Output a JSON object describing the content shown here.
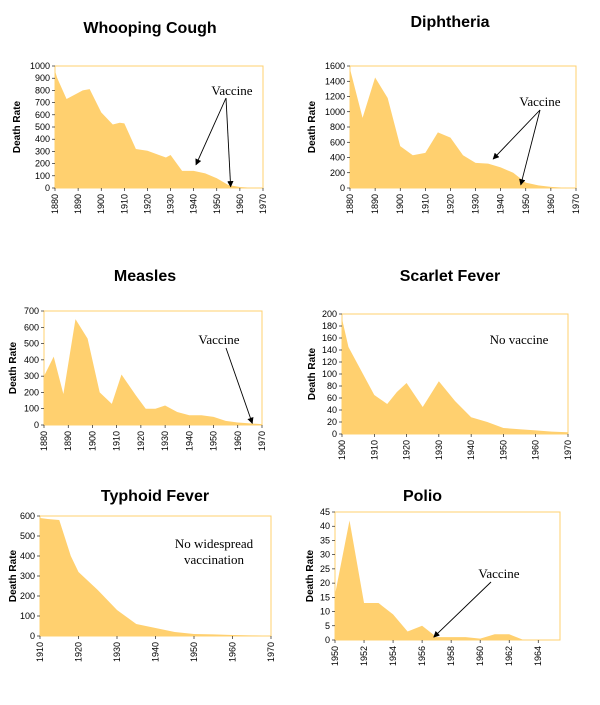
{
  "chart_data": [
    {
      "type": "area",
      "title": "Whooping Cough",
      "ylabel": "Death Rate",
      "xlabel": "",
      "xlim": [
        1880,
        1970
      ],
      "ylim": [
        0,
        1000
      ],
      "x_ticks": [
        1880,
        1890,
        1900,
        1910,
        1920,
        1930,
        1940,
        1950,
        1960,
        1970
      ],
      "y_ticks": [
        0,
        100,
        200,
        300,
        400,
        500,
        600,
        700,
        800,
        900,
        1000
      ],
      "x": [
        1880,
        1881,
        1885,
        1890,
        1892,
        1895,
        1900,
        1905,
        1908,
        1910,
        1915,
        1920,
        1925,
        1928,
        1930,
        1935,
        1940,
        1945,
        1950,
        1955,
        1960,
        1965,
        1970
      ],
      "values": [
        960,
        900,
        730,
        780,
        800,
        810,
        620,
        520,
        535,
        530,
        320,
        305,
        270,
        250,
        270,
        140,
        140,
        120,
        80,
        25,
        8,
        2,
        0
      ],
      "annotation": "Vaccine",
      "arrow_targets": [
        [
          1941,
          190
        ],
        [
          1956,
          10
        ]
      ],
      "color": "#FFD06F",
      "grid": false
    },
    {
      "type": "area",
      "title": "Diphtheria",
      "ylabel": "Death Rate",
      "xlabel": "",
      "xlim": [
        1880,
        1970
      ],
      "ylim": [
        0,
        1600
      ],
      "x_ticks": [
        1880,
        1890,
        1900,
        1910,
        1920,
        1930,
        1940,
        1950,
        1960,
        1970
      ],
      "y_ticks": [
        0,
        200,
        400,
        600,
        800,
        1000,
        1200,
        1400,
        1600
      ],
      "x": [
        1880,
        1885,
        1890,
        1895,
        1900,
        1905,
        1910,
        1915,
        1920,
        1925,
        1930,
        1935,
        1940,
        1945,
        1950,
        1955,
        1960,
        1965,
        1970
      ],
      "values": [
        1560,
        920,
        1450,
        1180,
        550,
        430,
        460,
        730,
        660,
        430,
        330,
        320,
        270,
        200,
        70,
        35,
        15,
        5,
        0
      ],
      "annotation": "Vaccine",
      "arrow_targets": [
        [
          1937,
          380
        ],
        [
          1948,
          40
        ]
      ],
      "color": "#FFD06F",
      "grid": false
    },
    {
      "type": "area",
      "title": "Measles",
      "ylabel": "Death Rate",
      "xlabel": "",
      "xlim": [
        1880,
        1970
      ],
      "ylim": [
        0,
        700
      ],
      "x_ticks": [
        1880,
        1890,
        1900,
        1910,
        1920,
        1930,
        1940,
        1950,
        1960,
        1970
      ],
      "y_ticks": [
        0,
        100,
        200,
        300,
        400,
        500,
        600,
        700
      ],
      "x": [
        1880,
        1884,
        1888,
        1893,
        1898,
        1903,
        1908,
        1912,
        1918,
        1922,
        1926,
        1930,
        1935,
        1940,
        1945,
        1950,
        1955,
        1960,
        1965,
        1970
      ],
      "values": [
        300,
        420,
        190,
        650,
        530,
        200,
        130,
        310,
        180,
        100,
        100,
        120,
        80,
        60,
        60,
        50,
        25,
        15,
        10,
        5
      ],
      "annotation": "Vaccine",
      "arrow_targets": [
        [
          1966,
          10
        ]
      ],
      "color": "#FFD06F",
      "grid": false
    },
    {
      "type": "area",
      "title": "Scarlet Fever",
      "ylabel": "Death Rate",
      "xlabel": "",
      "xlim": [
        1900,
        1970
      ],
      "ylim": [
        0,
        200
      ],
      "x_ticks": [
        1900,
        1910,
        1920,
        1930,
        1940,
        1950,
        1960,
        1970
      ],
      "y_ticks": [
        0,
        20,
        40,
        60,
        80,
        100,
        120,
        140,
        160,
        180,
        200
      ],
      "x": [
        1900,
        1902,
        1905,
        1908,
        1910,
        1914,
        1917,
        1920,
        1925,
        1930,
        1935,
        1940,
        1945,
        1950,
        1955,
        1960,
        1965,
        1970
      ],
      "values": [
        192,
        145,
        115,
        85,
        65,
        50,
        70,
        85,
        45,
        88,
        55,
        28,
        20,
        10,
        8,
        6,
        4,
        3
      ],
      "annotation": "No vaccine",
      "color": "#FFD06F",
      "grid": false
    },
    {
      "type": "area",
      "title": "Typhoid Fever",
      "ylabel": "Death Rate",
      "xlabel": "",
      "xlim": [
        1910,
        1970
      ],
      "ylim": [
        0,
        600
      ],
      "x_ticks": [
        1910,
        1920,
        1930,
        1940,
        1950,
        1960,
        1970
      ],
      "y_ticks": [
        0,
        100,
        200,
        300,
        400,
        500,
        600
      ],
      "x": [
        1910,
        1912,
        1915,
        1918,
        1920,
        1925,
        1930,
        1935,
        1940,
        1945,
        1950,
        1955,
        1960,
        1965,
        1970
      ],
      "values": [
        590,
        585,
        580,
        400,
        320,
        230,
        130,
        60,
        40,
        20,
        10,
        8,
        5,
        3,
        2
      ],
      "annotation_lines": [
        "No widespread",
        "vaccination"
      ],
      "color": "#FFD06F",
      "grid": false
    },
    {
      "type": "area",
      "title": "Polio",
      "ylabel": "Death Rate",
      "xlabel": "",
      "xlim": [
        1950,
        1965.5
      ],
      "ylim": [
        0,
        45
      ],
      "x_ticks": [
        1950,
        1952,
        1954,
        1956,
        1958,
        1960,
        1962,
        1964
      ],
      "y_ticks": [
        0,
        5,
        10,
        15,
        20,
        25,
        30,
        35,
        40,
        45
      ],
      "x": [
        1950,
        1951,
        1952,
        1953,
        1954,
        1955,
        1956,
        1957,
        1958,
        1959,
        1960,
        1961,
        1962,
        1963
      ],
      "values": [
        16,
        42,
        13,
        13,
        9,
        3,
        5,
        1,
        1,
        1,
        0.5,
        2,
        2,
        0
      ],
      "annotation": "Vaccine",
      "arrow_targets": [
        [
          1956.8,
          1
        ]
      ],
      "color": "#FFD06F",
      "grid": false
    }
  ]
}
